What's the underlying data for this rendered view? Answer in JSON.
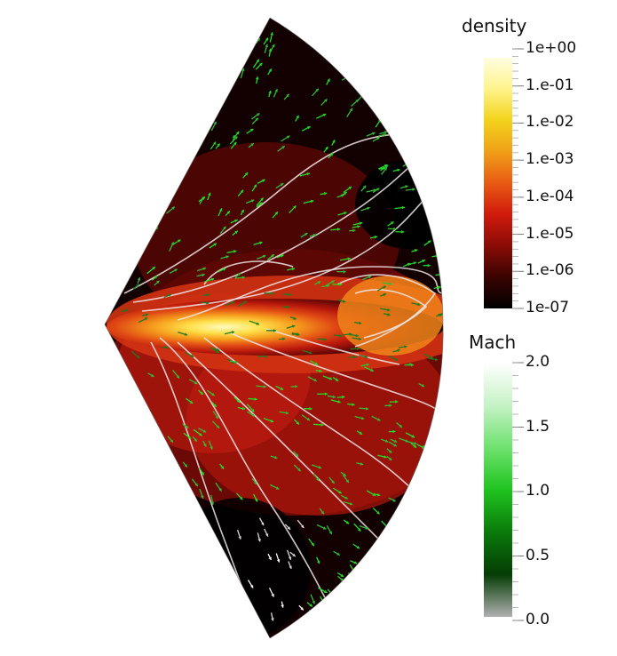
{
  "density_legend": {
    "title": "density",
    "ticks": [
      "1e+00",
      "1.e-01",
      "1.e-02",
      "1.e-03",
      "1.e-04",
      "1.e-05",
      "1.e-06",
      "1e-07"
    ],
    "colors": [
      "#fffde0",
      "#fff38a",
      "#f2d21a",
      "#f0a018",
      "#e85a14",
      "#d01a0c",
      "#8a0c06",
      "#3a0402",
      "#000000"
    ]
  },
  "mach_legend": {
    "title": "Mach",
    "ticks": [
      "2.0",
      "1.5",
      "1.0",
      "0.5",
      "0.0"
    ],
    "colors": [
      "#ffffff",
      "#c6f2c6",
      "#6fe26f",
      "#1fc41f",
      "#0a7a0a",
      "#053d05",
      "#b0b0b0"
    ]
  },
  "field": {
    "disk_colors": [
      "#fffbc0",
      "#ffe04a",
      "#f59a1c",
      "#e04a14",
      "#b8180c",
      "#6a0806",
      "#140100"
    ],
    "arrow_colors": [
      "#22dd22",
      "#33bb33",
      "#1e7a1e",
      "#ffffff",
      "#d8d8d8"
    ],
    "streamline_color": "#f0e8e8"
  }
}
